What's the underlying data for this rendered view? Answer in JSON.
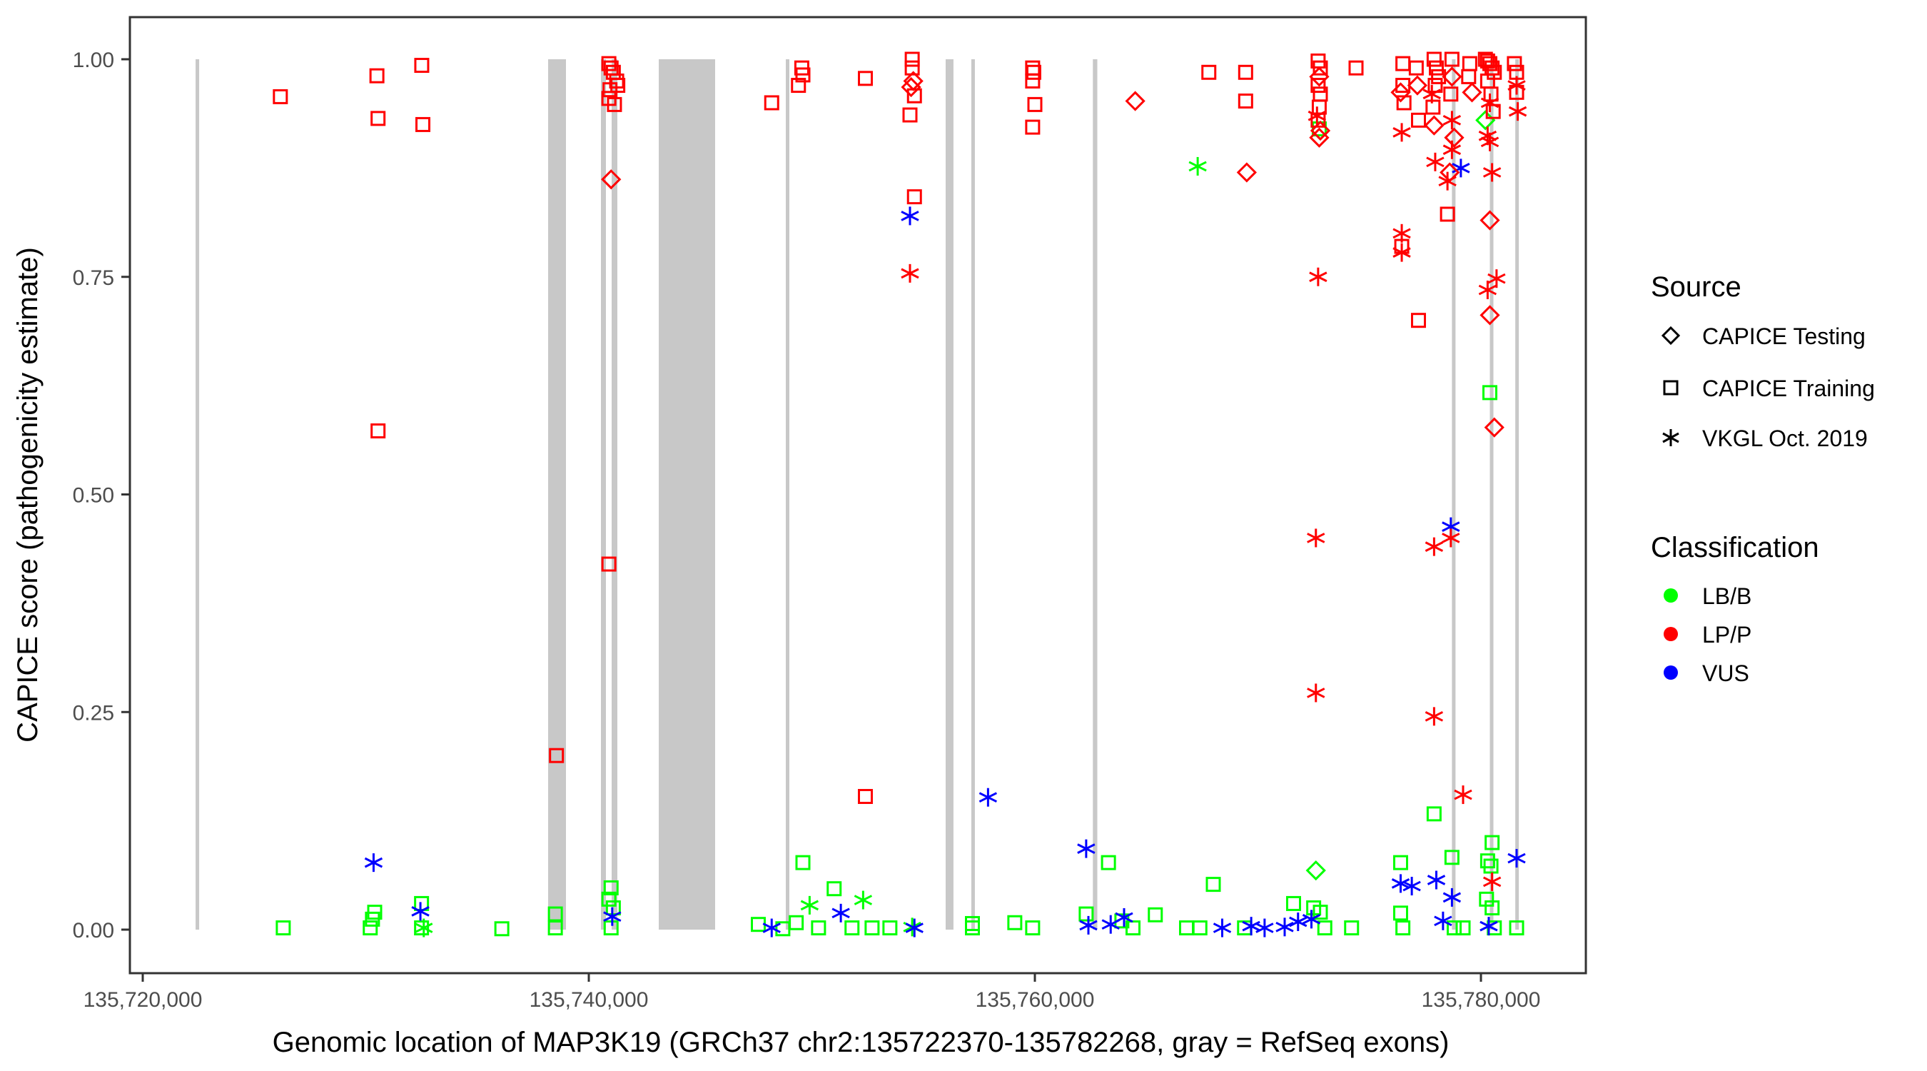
{
  "chart_data": {
    "type": "scatter",
    "xlabel": "Genomic location of MAP3K19 (GRCh37 chr2:135722370-135782268, gray = RefSeq exons)",
    "ylabel": "CAPICE score (pathogenicity estimate)",
    "xlim": [
      135719500,
      135782800
    ],
    "ylim": [
      -0.05,
      1.05
    ],
    "x_ticks": [
      135720000,
      135740000,
      135760000,
      135780000
    ],
    "x_tick_labels": [
      "135,720,000",
      "135,740,000",
      "135,760,000",
      "135,780,000"
    ],
    "y_ticks": [
      0,
      0.25,
      0.5,
      0.75,
      1.0
    ],
    "y_tick_labels": [
      "0.00",
      "0.25",
      "0.50",
      "0.75",
      "1.00"
    ],
    "grid": false,
    "exons": [
      [
        135722370,
        135722500
      ],
      [
        135738176,
        135738976
      ],
      [
        135740544,
        135740768
      ],
      [
        135741024,
        135741280
      ],
      [
        135743136,
        135745664
      ],
      [
        135748832,
        135748928
      ],
      [
        135756000,
        135756350
      ],
      [
        135757150,
        135757300
      ],
      [
        135762600,
        135762800
      ],
      [
        135778700,
        135778830
      ],
      [
        135780400,
        135780530
      ],
      [
        135781540,
        135781640
      ]
    ],
    "legend": {
      "position": "right",
      "source_title": "Source",
      "source_entries": [
        {
          "key": "testing",
          "label": "CAPICE Testing",
          "shape": "diamond"
        },
        {
          "key": "training",
          "label": "CAPICE Training",
          "shape": "square"
        },
        {
          "key": "vkgl",
          "label": "VKGL Oct. 2019",
          "shape": "asterisk"
        }
      ],
      "class_title": "Classification",
      "class_entries": [
        {
          "key": "LB/B",
          "label": "LB/B",
          "color": "#00ff00"
        },
        {
          "key": "LP/P",
          "label": "LP/P",
          "color": "#ff0000"
        },
        {
          "key": "VUS",
          "label": "VUS",
          "color": "#0000ff"
        }
      ]
    },
    "colors": {
      "LB/B": "#00ff00",
      "LP/P": "#ff0000",
      "VUS": "#0000ff",
      "exon": "#c8c8c8",
      "panel_border": "#333333"
    },
    "points": [
      [
        135726170,
        0.957,
        "training",
        "LP/P"
      ],
      [
        135730500,
        0.981,
        "training",
        "LP/P"
      ],
      [
        135730550,
        0.932,
        "training",
        "LP/P"
      ],
      [
        135730550,
        0.573,
        "training",
        "LP/P"
      ],
      [
        135732510,
        0.993,
        "training",
        "LP/P"
      ],
      [
        135732560,
        0.925,
        "training",
        "LP/P"
      ],
      [
        135738550,
        0.2,
        "training",
        "LP/P"
      ],
      [
        135740900,
        0.995,
        "training",
        "LP/P"
      ],
      [
        135741000,
        0.99,
        "training",
        "LP/P"
      ],
      [
        135741100,
        0.985,
        "training",
        "LP/P"
      ],
      [
        135741250,
        0.975,
        "training",
        "LP/P"
      ],
      [
        135741300,
        0.97,
        "training",
        "LP/P"
      ],
      [
        135740950,
        0.965,
        "training",
        "LP/P"
      ],
      [
        135740900,
        0.955,
        "training",
        "LP/P"
      ],
      [
        135741150,
        0.948,
        "training",
        "LP/P"
      ],
      [
        135741000,
        0.862,
        "testing",
        "LP/P"
      ],
      [
        135740900,
        0.42,
        "training",
        "LP/P"
      ],
      [
        135748200,
        0.95,
        "training",
        "LP/P"
      ],
      [
        135749550,
        0.99,
        "training",
        "LP/P"
      ],
      [
        135749600,
        0.982,
        "training",
        "LP/P"
      ],
      [
        135749400,
        0.97,
        "training",
        "LP/P"
      ],
      [
        135752400,
        0.978,
        "training",
        "LP/P"
      ],
      [
        135752400,
        0.153,
        "training",
        "LP/P"
      ],
      [
        135754500,
        1.0,
        "training",
        "LP/P"
      ],
      [
        135754500,
        0.99,
        "training",
        "LP/P"
      ],
      [
        135754550,
        0.975,
        "testing",
        "LP/P"
      ],
      [
        135754450,
        0.968,
        "testing",
        "LP/P"
      ],
      [
        135754600,
        0.958,
        "training",
        "LP/P"
      ],
      [
        135754400,
        0.936,
        "training",
        "LP/P"
      ],
      [
        135754600,
        0.842,
        "training",
        "LP/P"
      ],
      [
        135754400,
        0.82,
        "vkgl",
        "VUS"
      ],
      [
        135754400,
        0.754,
        "vkgl",
        "LP/P"
      ],
      [
        135759900,
        0.99,
        "training",
        "LP/P"
      ],
      [
        135759950,
        0.985,
        "training",
        "LP/P"
      ],
      [
        135759900,
        0.975,
        "training",
        "LP/P"
      ],
      [
        135760000,
        0.948,
        "training",
        "LP/P"
      ],
      [
        135759900,
        0.922,
        "training",
        "LP/P"
      ],
      [
        135764500,
        0.952,
        "testing",
        "LP/P"
      ],
      [
        135767800,
        0.985,
        "training",
        "LP/P"
      ],
      [
        135769450,
        0.985,
        "training",
        "LP/P"
      ],
      [
        135769450,
        0.952,
        "training",
        "LP/P"
      ],
      [
        135769500,
        0.87,
        "testing",
        "LP/P"
      ],
      [
        135767300,
        0.877,
        "vkgl",
        "LB/B"
      ],
      [
        135772700,
        0.998,
        "training",
        "LP/P"
      ],
      [
        135772800,
        0.99,
        "training",
        "LP/P"
      ],
      [
        135772750,
        0.98,
        "testing",
        "LP/P"
      ],
      [
        135772700,
        0.97,
        "training",
        "LP/P"
      ],
      [
        135772800,
        0.96,
        "training",
        "LP/P"
      ],
      [
        135772750,
        0.945,
        "training",
        "LP/P"
      ],
      [
        135772650,
        0.935,
        "vkgl",
        "LP/P"
      ],
      [
        135772700,
        0.93,
        "training",
        "LP/P"
      ],
      [
        135772750,
        0.92,
        "training",
        "LB/B"
      ],
      [
        135772800,
        0.918,
        "testing",
        "LP/P"
      ],
      [
        135772750,
        0.91,
        "testing",
        "LP/P"
      ],
      [
        135772700,
        0.75,
        "vkgl",
        "LP/P"
      ],
      [
        135772600,
        0.45,
        "vkgl",
        "LP/P"
      ],
      [
        135772600,
        0.272,
        "vkgl",
        "LP/P"
      ],
      [
        135774400,
        0.99,
        "training",
        "LP/P"
      ],
      [
        135776500,
        0.995,
        "training",
        "LP/P"
      ],
      [
        135776500,
        0.97,
        "training",
        "LP/P"
      ],
      [
        135776400,
        0.962,
        "testing",
        "LP/P"
      ],
      [
        135776550,
        0.95,
        "training",
        "LP/P"
      ],
      [
        135776450,
        0.916,
        "vkgl",
        "LP/P"
      ],
      [
        135777100,
        0.99,
        "training",
        "LP/P"
      ],
      [
        135777150,
        0.97,
        "testing",
        "LP/P"
      ],
      [
        135777200,
        0.93,
        "training",
        "LP/P"
      ],
      [
        135777200,
        0.7,
        "training",
        "LP/P"
      ],
      [
        135776450,
        0.8,
        "vkgl",
        "LP/P"
      ],
      [
        135776450,
        0.785,
        "training",
        "LP/P"
      ],
      [
        135776450,
        0.778,
        "vkgl",
        "LP/P"
      ],
      [
        135777900,
        1.0,
        "training",
        "LP/P"
      ],
      [
        135778000,
        0.99,
        "training",
        "LP/P"
      ],
      [
        135778100,
        0.98,
        "training",
        "LP/P"
      ],
      [
        135777950,
        0.97,
        "training",
        "LP/P"
      ],
      [
        135777800,
        0.96,
        "vkgl",
        "LP/P"
      ],
      [
        135777850,
        0.945,
        "training",
        "LP/P"
      ],
      [
        135777900,
        0.924,
        "testing",
        "LP/P"
      ],
      [
        135777950,
        0.882,
        "vkgl",
        "LP/P"
      ],
      [
        135777900,
        0.44,
        "vkgl",
        "LP/P"
      ],
      [
        135777900,
        0.245,
        "vkgl",
        "LP/P"
      ],
      [
        135778700,
        1.0,
        "training",
        "LP/P"
      ],
      [
        135778700,
        0.98,
        "testing",
        "LP/P"
      ],
      [
        135778650,
        0.96,
        "training",
        "LP/P"
      ],
      [
        135778700,
        0.93,
        "vkgl",
        "LP/P"
      ],
      [
        135778800,
        0.91,
        "testing",
        "LP/P"
      ],
      [
        135778700,
        0.896,
        "vkgl",
        "LP/P"
      ],
      [
        135778600,
        0.87,
        "testing",
        "LP/P"
      ],
      [
        135778500,
        0.86,
        "vkgl",
        "LP/P"
      ],
      [
        135778500,
        0.822,
        "training",
        "LP/P"
      ],
      [
        135779100,
        0.875,
        "vkgl",
        "VUS"
      ],
      [
        135778650,
        0.463,
        "vkgl",
        "VUS"
      ],
      [
        135778650,
        0.45,
        "vkgl",
        "LP/P"
      ],
      [
        135779200,
        0.155,
        "vkgl",
        "LP/P"
      ],
      [
        135779500,
        0.995,
        "training",
        "LP/P"
      ],
      [
        135779450,
        0.98,
        "training",
        "LP/P"
      ],
      [
        135779600,
        0.962,
        "testing",
        "LP/P"
      ],
      [
        135780200,
        1.0,
        "training",
        "LP/P"
      ],
      [
        135780300,
        0.998,
        "training",
        "LP/P"
      ],
      [
        135780400,
        0.995,
        "training",
        "LP/P"
      ],
      [
        135780500,
        0.99,
        "training",
        "LP/P"
      ],
      [
        135780600,
        0.985,
        "training",
        "LP/P"
      ],
      [
        135780300,
        0.975,
        "training",
        "LP/P"
      ],
      [
        135780450,
        0.96,
        "training",
        "LP/P"
      ],
      [
        135780400,
        0.95,
        "vkgl",
        "LP/P"
      ],
      [
        135780550,
        0.94,
        "training",
        "LP/P"
      ],
      [
        135780200,
        0.93,
        "testing",
        "LB/B"
      ],
      [
        135780300,
        0.912,
        "vkgl",
        "LP/P"
      ],
      [
        135780400,
        0.905,
        "vkgl",
        "LP/P"
      ],
      [
        135780500,
        0.87,
        "vkgl",
        "LP/P"
      ],
      [
        135780400,
        0.815,
        "testing",
        "LP/P"
      ],
      [
        135780300,
        0.735,
        "vkgl",
        "LP/P"
      ],
      [
        135780400,
        0.706,
        "testing",
        "LP/P"
      ],
      [
        135780700,
        0.748,
        "vkgl",
        "LP/P"
      ],
      [
        135780600,
        0.577,
        "testing",
        "LP/P"
      ],
      [
        135780400,
        0.617,
        "training",
        "LB/B"
      ],
      [
        135780500,
        0.055,
        "vkgl",
        "LP/P"
      ],
      [
        135781500,
        0.995,
        "training",
        "LP/P"
      ],
      [
        135781600,
        0.985,
        "training",
        "LP/P"
      ],
      [
        135781600,
        0.97,
        "vkgl",
        "LP/P"
      ],
      [
        135781600,
        0.962,
        "training",
        "LP/P"
      ],
      [
        135781650,
        0.94,
        "vkgl",
        "LP/P"
      ],
      [
        135726300,
        0.002,
        "training",
        "LB/B"
      ],
      [
        135730200,
        0.002,
        "training",
        "LB/B"
      ],
      [
        135730300,
        0.012,
        "training",
        "LB/B"
      ],
      [
        135730400,
        0.02,
        "training",
        "LB/B"
      ],
      [
        135730350,
        0.077,
        "vkgl",
        "VUS"
      ],
      [
        135732500,
        0.03,
        "training",
        "LB/B"
      ],
      [
        135732500,
        0.002,
        "training",
        "LB/B"
      ],
      [
        135732450,
        0.021,
        "vkgl",
        "VUS"
      ],
      [
        135732600,
        0.002,
        "vkgl",
        "LB/B"
      ],
      [
        135736100,
        0.001,
        "training",
        "LB/B"
      ],
      [
        135738500,
        0.018,
        "training",
        "LB/B"
      ],
      [
        135738500,
        0.002,
        "training",
        "LB/B"
      ],
      [
        135741000,
        0.048,
        "training",
        "LB/B"
      ],
      [
        135740900,
        0.035,
        "training",
        "LB/B"
      ],
      [
        135741100,
        0.025,
        "training",
        "LB/B"
      ],
      [
        135741050,
        0.015,
        "vkgl",
        "VUS"
      ],
      [
        135741000,
        0.002,
        "training",
        "LB/B"
      ],
      [
        135747600,
        0.006,
        "training",
        "LB/B"
      ],
      [
        135748200,
        0.002,
        "vkgl",
        "VUS"
      ],
      [
        135748700,
        0.001,
        "training",
        "LB/B"
      ],
      [
        135749300,
        0.008,
        "training",
        "LB/B"
      ],
      [
        135749600,
        0.077,
        "training",
        "LB/B"
      ],
      [
        135749900,
        0.028,
        "vkgl",
        "LB/B"
      ],
      [
        135750300,
        0.002,
        "training",
        "LB/B"
      ],
      [
        135751000,
        0.047,
        "training",
        "LB/B"
      ],
      [
        135751300,
        0.019,
        "vkgl",
        "VUS"
      ],
      [
        135751800,
        0.002,
        "training",
        "LB/B"
      ],
      [
        135752300,
        0.034,
        "vkgl",
        "LB/B"
      ],
      [
        135752700,
        0.002,
        "training",
        "LB/B"
      ],
      [
        135753500,
        0.002,
        "training",
        "LB/B"
      ],
      [
        135754500,
        0.003,
        "vkgl",
        "LB/B"
      ],
      [
        135754600,
        0.002,
        "vkgl",
        "VUS"
      ],
      [
        135757200,
        0.007,
        "training",
        "LB/B"
      ],
      [
        135757200,
        0.002,
        "training",
        "LB/B"
      ],
      [
        135759100,
        0.008,
        "training",
        "LB/B"
      ],
      [
        135759900,
        0.002,
        "training",
        "LB/B"
      ],
      [
        135757900,
        0.152,
        "vkgl",
        "VUS"
      ],
      [
        135762300,
        0.093,
        "vkgl",
        "VUS"
      ],
      [
        135762300,
        0.018,
        "training",
        "LB/B"
      ],
      [
        135762400,
        0.005,
        "vkgl",
        "VUS"
      ],
      [
        135763300,
        0.077,
        "training",
        "LB/B"
      ],
      [
        135763400,
        0.006,
        "vkgl",
        "VUS"
      ],
      [
        135763900,
        0.01,
        "training",
        "LB/B"
      ],
      [
        135764000,
        0.014,
        "vkgl",
        "VUS"
      ],
      [
        135764400,
        0.002,
        "training",
        "LB/B"
      ],
      [
        135765400,
        0.017,
        "training",
        "LB/B"
      ],
      [
        135766800,
        0.002,
        "training",
        "LB/B"
      ],
      [
        135767400,
        0.002,
        "training",
        "LB/B"
      ],
      [
        135768000,
        0.052,
        "training",
        "LB/B"
      ],
      [
        135768400,
        0.002,
        "vkgl",
        "VUS"
      ],
      [
        135769400,
        0.002,
        "training",
        "LB/B"
      ],
      [
        135769700,
        0.004,
        "vkgl",
        "VUS"
      ],
      [
        135770300,
        0.002,
        "vkgl",
        "VUS"
      ],
      [
        135771200,
        0.003,
        "vkgl",
        "VUS"
      ],
      [
        135771600,
        0.03,
        "training",
        "LB/B"
      ],
      [
        135771800,
        0.009,
        "vkgl",
        "VUS"
      ],
      [
        135772400,
        0.012,
        "vkgl",
        "VUS"
      ],
      [
        135772500,
        0.025,
        "training",
        "LB/B"
      ],
      [
        135772600,
        0.068,
        "testing",
        "LB/B"
      ],
      [
        135772800,
        0.02,
        "training",
        "LB/B"
      ],
      [
        135773000,
        0.002,
        "training",
        "LB/B"
      ],
      [
        135774200,
        0.002,
        "training",
        "LB/B"
      ],
      [
        135776400,
        0.077,
        "training",
        "LB/B"
      ],
      [
        135776400,
        0.053,
        "vkgl",
        "VUS"
      ],
      [
        135776900,
        0.05,
        "vkgl",
        "VUS"
      ],
      [
        135776400,
        0.019,
        "training",
        "LB/B"
      ],
      [
        135776500,
        0.002,
        "training",
        "LB/B"
      ],
      [
        135777900,
        0.133,
        "training",
        "LB/B"
      ],
      [
        135778000,
        0.057,
        "vkgl",
        "VUS"
      ],
      [
        135778300,
        0.01,
        "vkgl",
        "VUS"
      ],
      [
        135778700,
        0.083,
        "training",
        "LB/B"
      ],
      [
        135778700,
        0.037,
        "vkgl",
        "VUS"
      ],
      [
        135778800,
        0.002,
        "training",
        "LB/B"
      ],
      [
        135779200,
        0.002,
        "training",
        "LB/B"
      ],
      [
        135780300,
        0.079,
        "training",
        "LB/B"
      ],
      [
        135780500,
        0.1,
        "training",
        "LB/B"
      ],
      [
        135780450,
        0.073,
        "training",
        "LB/B"
      ],
      [
        135780250,
        0.035,
        "training",
        "LB/B"
      ],
      [
        135780500,
        0.025,
        "training",
        "LB/B"
      ],
      [
        135780350,
        0.004,
        "vkgl",
        "VUS"
      ],
      [
        135780600,
        0.002,
        "training",
        "LB/B"
      ],
      [
        135781600,
        0.082,
        "vkgl",
        "VUS"
      ],
      [
        135781600,
        0.002,
        "training",
        "LB/B"
      ]
    ]
  }
}
